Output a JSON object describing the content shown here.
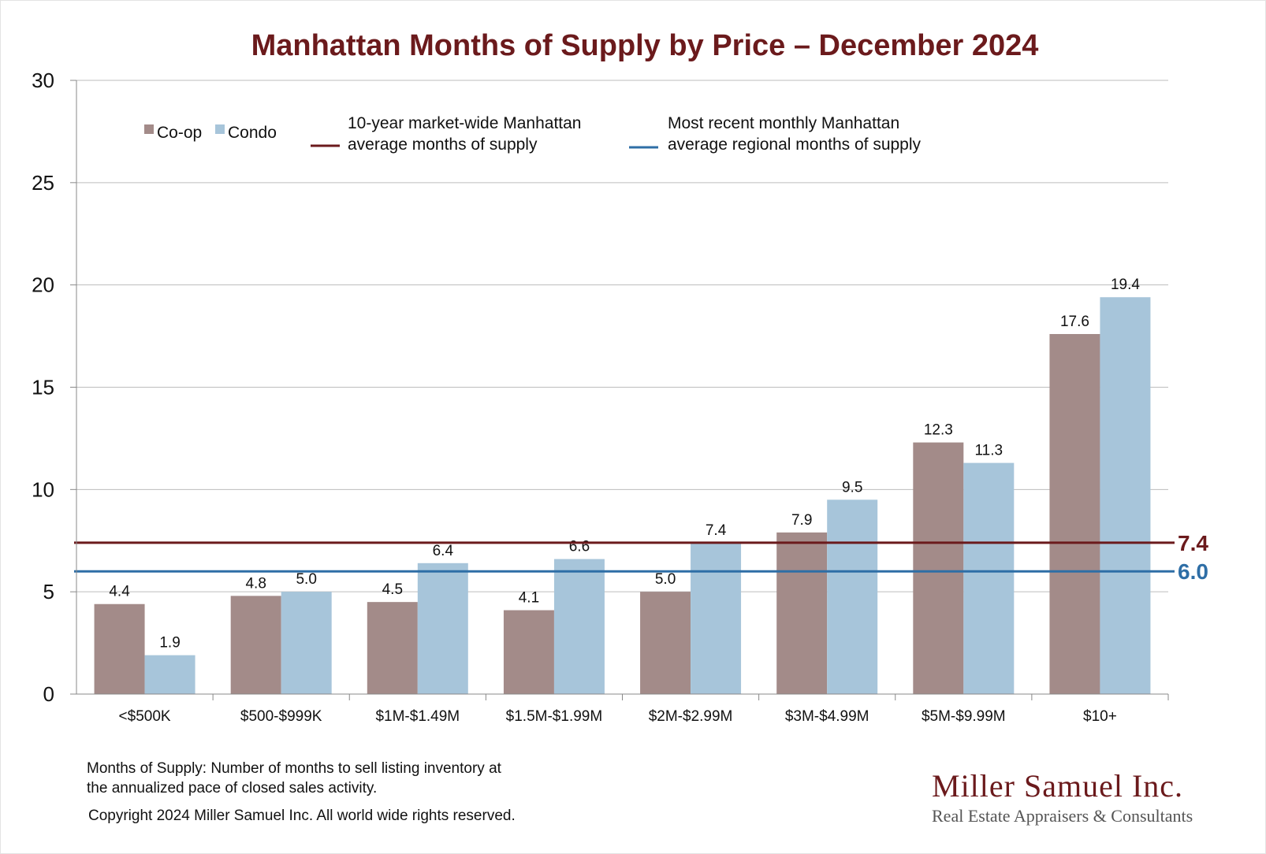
{
  "chart_data": {
    "type": "bar",
    "title": "Manhattan Months of Supply by Price – December 2024",
    "categories": [
      "<$500K",
      "$500-$999K",
      "$1M-$1.49M",
      "$1.5M-$1.99M",
      "$2M-$2.99M",
      "$3M-$4.99M",
      "$5M-$9.99M",
      "$10+"
    ],
    "series": [
      {
        "name": "Co-op",
        "color": "#a38b89",
        "values": [
          4.4,
          4.8,
          4.5,
          4.1,
          5.0,
          7.9,
          12.3,
          17.6
        ],
        "labels": [
          "4.4",
          "4.8",
          "4.5",
          "4.1",
          "5.0",
          "7.9",
          "12.3",
          "17.6"
        ]
      },
      {
        "name": "Condo",
        "color": "#a7c5da",
        "values": [
          1.9,
          5.0,
          6.4,
          6.6,
          7.4,
          9.5,
          11.3,
          19.4
        ],
        "labels": [
          "1.9",
          "5.0",
          "6.4",
          "6.6",
          "7.4",
          "9.5",
          "11.3",
          "19.4"
        ]
      }
    ],
    "reference_lines": [
      {
        "name_line1": "10-year market-wide Manhattan",
        "name_line2": "average months of supply",
        "value": 7.4,
        "label": "7.4",
        "color": "#6b1a1c"
      },
      {
        "name_line1": "Most recent monthly Manhattan",
        "name_line2": "average regional months of supply",
        "value": 6.0,
        "label": "6.0",
        "color": "#2e6ea6"
      }
    ],
    "ylim": [
      0,
      30
    ],
    "yticks": [
      0,
      5,
      10,
      15,
      20,
      25,
      30
    ],
    "ytick_labels": [
      "0",
      "5",
      "10",
      "15",
      "20",
      "25",
      "30"
    ],
    "grid": true,
    "legend_position": "top-left"
  },
  "footnote": {
    "line1": "Months of Supply: Number of months to sell listing inventory at",
    "line2": "the annualized pace of closed sales activity.",
    "copyright": "Copyright 2024 Miller Samuel Inc.  All world wide rights reserved."
  },
  "brand": {
    "name": "Miller Samuel Inc.",
    "tagline": "Real Estate Appraisers & Consultants"
  }
}
